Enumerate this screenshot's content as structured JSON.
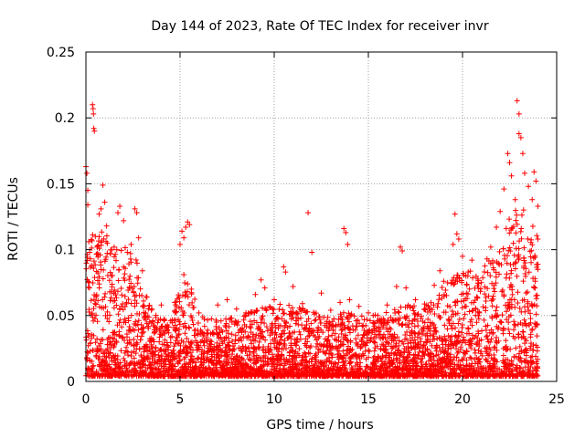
{
  "chart_data": {
    "type": "scatter",
    "title": "Day 144 of 2023, Rate Of TEC Index for receiver invr",
    "xlabel": "GPS time / hours",
    "ylabel": "ROTI / TECUs",
    "xlim": [
      0,
      25
    ],
    "ylim": [
      0,
      0.25
    ],
    "xticks": [
      0,
      5,
      10,
      15,
      20,
      25
    ],
    "xtick_labels": [
      "0",
      "5",
      "10",
      "15",
      "20",
      "25"
    ],
    "yticks": [
      0,
      0.05,
      0.1,
      0.15,
      0.2,
      0.25
    ],
    "ytick_labels": [
      "0",
      "0.05",
      "0.1",
      "0.15",
      "0.2",
      "0.25"
    ],
    "grid": true,
    "marker": "+",
    "color": "#ff0000",
    "series": [
      {
        "points": [
          [
            0.0,
            0.163
          ],
          [
            0.05,
            0.158
          ],
          [
            0.1,
            0.145
          ],
          [
            0.1,
            0.134
          ],
          [
            0.15,
            0.106
          ],
          [
            0.2,
            0.098
          ],
          [
            0.3,
            0.088
          ],
          [
            0.35,
            0.21
          ],
          [
            0.38,
            0.207
          ],
          [
            0.4,
            0.203
          ],
          [
            0.42,
            0.192
          ],
          [
            0.45,
            0.19
          ],
          [
            0.5,
            0.11
          ],
          [
            0.6,
            0.102
          ],
          [
            0.7,
            0.127
          ],
          [
            0.8,
            0.131
          ],
          [
            0.9,
            0.149
          ],
          [
            1.0,
            0.136
          ],
          [
            1.1,
            0.118
          ],
          [
            1.3,
            0.097
          ],
          [
            1.5,
            0.102
          ],
          [
            1.7,
            0.128
          ],
          [
            1.8,
            0.133
          ],
          [
            2.0,
            0.122
          ],
          [
            2.2,
            0.098
          ],
          [
            2.4,
            0.104
          ],
          [
            2.6,
            0.131
          ],
          [
            2.7,
            0.128
          ],
          [
            2.8,
            0.109
          ],
          [
            3.0,
            0.084
          ],
          [
            3.2,
            0.064
          ],
          [
            3.5,
            0.055
          ],
          [
            4.0,
            0.058
          ],
          [
            4.5,
            0.046
          ],
          [
            5.0,
            0.104
          ],
          [
            5.1,
            0.114
          ],
          [
            5.2,
            0.109
          ],
          [
            5.3,
            0.117
          ],
          [
            5.4,
            0.121
          ],
          [
            5.5,
            0.119
          ],
          [
            5.2,
            0.081
          ],
          [
            5.4,
            0.074
          ],
          [
            5.6,
            0.07
          ],
          [
            6.0,
            0.052
          ],
          [
            7.0,
            0.058
          ],
          [
            7.5,
            0.062
          ],
          [
            8.0,
            0.055
          ],
          [
            8.5,
            0.052
          ],
          [
            9.0,
            0.066
          ],
          [
            9.3,
            0.077
          ],
          [
            9.5,
            0.071
          ],
          [
            10.0,
            0.062
          ],
          [
            10.5,
            0.087
          ],
          [
            10.6,
            0.083
          ],
          [
            11.0,
            0.072
          ],
          [
            11.5,
            0.059
          ],
          [
            11.8,
            0.128
          ],
          [
            12.0,
            0.098
          ],
          [
            12.5,
            0.067
          ],
          [
            13.0,
            0.054
          ],
          [
            13.5,
            0.06
          ],
          [
            13.7,
            0.116
          ],
          [
            13.8,
            0.113
          ],
          [
            13.9,
            0.104
          ],
          [
            14.0,
            0.062
          ],
          [
            14.5,
            0.057
          ],
          [
            15.0,
            0.052
          ],
          [
            15.5,
            0.05
          ],
          [
            16.0,
            0.058
          ],
          [
            16.5,
            0.072
          ],
          [
            16.7,
            0.102
          ],
          [
            16.8,
            0.099
          ],
          [
            17.0,
            0.071
          ],
          [
            17.5,
            0.062
          ],
          [
            18.0,
            0.055
          ],
          [
            18.5,
            0.073
          ],
          [
            18.8,
            0.084
          ],
          [
            19.0,
            0.076
          ],
          [
            19.5,
            0.104
          ],
          [
            19.6,
            0.127
          ],
          [
            19.7,
            0.112
          ],
          [
            19.8,
            0.108
          ],
          [
            20.0,
            0.095
          ],
          [
            20.3,
            0.083
          ],
          [
            20.5,
            0.092
          ],
          [
            21.0,
            0.075
          ],
          [
            21.3,
            0.093
          ],
          [
            21.5,
            0.102
          ],
          [
            21.8,
            0.117
          ],
          [
            22.0,
            0.129
          ],
          [
            22.2,
            0.146
          ],
          [
            22.4,
            0.173
          ],
          [
            22.5,
            0.166
          ],
          [
            22.6,
            0.156
          ],
          [
            22.8,
            0.138
          ],
          [
            22.9,
            0.213
          ],
          [
            23.0,
            0.203
          ],
          [
            23.0,
            0.188
          ],
          [
            23.1,
            0.185
          ],
          [
            23.2,
            0.173
          ],
          [
            23.3,
            0.158
          ],
          [
            23.5,
            0.148
          ],
          [
            23.7,
            0.138
          ],
          [
            23.8,
            0.159
          ],
          [
            23.9,
            0.152
          ],
          [
            24.0,
            0.133
          ],
          [
            24.0,
            0.108
          ],
          [
            24.0,
            0.085
          ]
        ],
        "band": [
          [
            0.0,
            0.095
          ],
          [
            0.5,
            0.115
          ],
          [
            1.0,
            0.11
          ],
          [
            1.5,
            0.095
          ],
          [
            2.0,
            0.1
          ],
          [
            2.5,
            0.105
          ],
          [
            3.0,
            0.07
          ],
          [
            3.5,
            0.05
          ],
          [
            4.0,
            0.045
          ],
          [
            4.5,
            0.042
          ],
          [
            5.0,
            0.075
          ],
          [
            5.5,
            0.08
          ],
          [
            6.0,
            0.045
          ],
          [
            7.0,
            0.045
          ],
          [
            8.0,
            0.045
          ],
          [
            9.0,
            0.05
          ],
          [
            10.0,
            0.055
          ],
          [
            11.0,
            0.055
          ],
          [
            12.0,
            0.05
          ],
          [
            13.0,
            0.045
          ],
          [
            14.0,
            0.05
          ],
          [
            15.0,
            0.045
          ],
          [
            16.0,
            0.05
          ],
          [
            17.0,
            0.055
          ],
          [
            18.0,
            0.055
          ],
          [
            19.0,
            0.07
          ],
          [
            20.0,
            0.08
          ],
          [
            21.0,
            0.08
          ],
          [
            22.0,
            0.1
          ],
          [
            22.5,
            0.12
          ],
          [
            23.0,
            0.135
          ],
          [
            23.5,
            0.125
          ],
          [
            24.0,
            0.11
          ]
        ]
      }
    ]
  }
}
